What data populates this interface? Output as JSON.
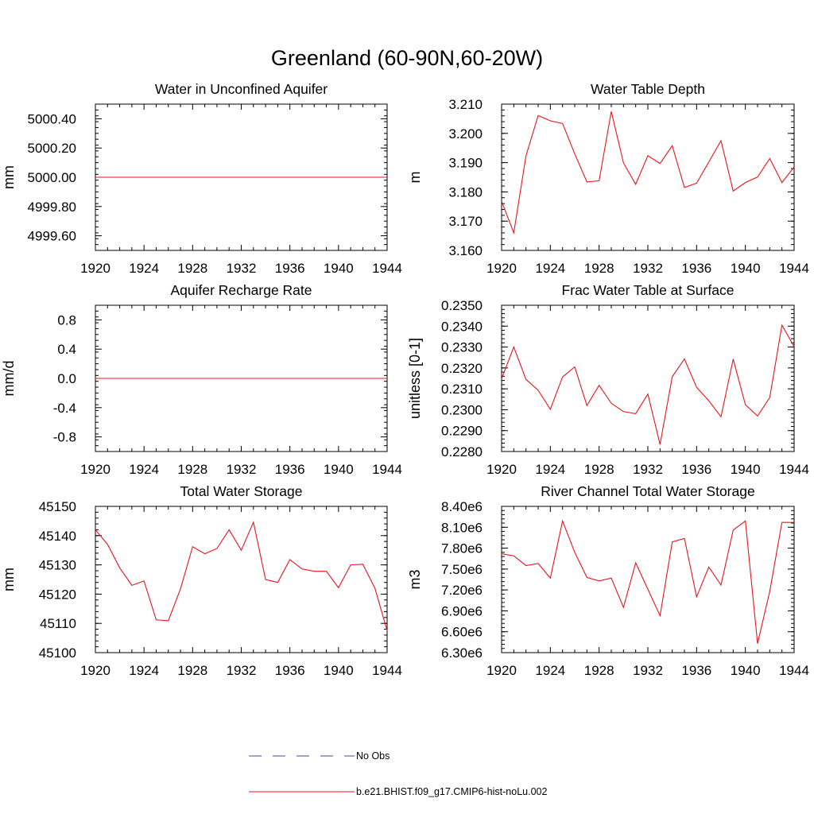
{
  "figure": {
    "title": "Greenland (60-90N,60-20W)",
    "line_color": "#e8141e",
    "obs_color": "#3d4a9c"
  },
  "legend": {
    "entries": [
      {
        "label": "No Obs",
        "style": "dashed",
        "color": "#3d4a9c"
      },
      {
        "label": "b.e21.BHIST.f09_g17.CMIP6-hist-noLu.002",
        "style": "solid",
        "color": "#e8141e"
      }
    ]
  },
  "chart_data": [
    {
      "type": "line",
      "title": "Water in Unconfined Aquifer",
      "ylabel": "mm",
      "xlim": [
        1920,
        1944
      ],
      "ylim": [
        4999.5,
        5000.5
      ],
      "xticks": [
        1920,
        1924,
        1928,
        1932,
        1936,
        1940,
        1944
      ],
      "xtick_labels": [
        "1920",
        "1924",
        "1928",
        "1932",
        "1936",
        "1940",
        "1944"
      ],
      "yticks": [
        4999.6,
        4999.8,
        5000.0,
        5000.2,
        5000.4
      ],
      "ytick_labels": [
        "4999.60",
        "4999.80",
        "5000.00",
        "5000.20",
        "5000.40"
      ],
      "x": [
        1920,
        1921,
        1922,
        1923,
        1924,
        1925,
        1926,
        1927,
        1928,
        1929,
        1930,
        1931,
        1932,
        1933,
        1934,
        1935,
        1936,
        1937,
        1938,
        1939,
        1940,
        1941,
        1942,
        1943,
        1944
      ],
      "values": [
        5000,
        5000,
        5000,
        5000,
        5000,
        5000,
        5000,
        5000,
        5000,
        5000,
        5000,
        5000,
        5000,
        5000,
        5000,
        5000,
        5000,
        5000,
        5000,
        5000,
        5000,
        5000,
        5000,
        5000,
        5000
      ]
    },
    {
      "type": "line",
      "title": "Water Table Depth",
      "ylabel": "m",
      "xlim": [
        1920,
        1944
      ],
      "ylim": [
        3.16,
        3.21
      ],
      "xticks": [
        1920,
        1924,
        1928,
        1932,
        1936,
        1940,
        1944
      ],
      "xtick_labels": [
        "1920",
        "1924",
        "1928",
        "1932",
        "1936",
        "1940",
        "1944"
      ],
      "yticks": [
        3.16,
        3.17,
        3.18,
        3.19,
        3.2,
        3.21
      ],
      "ytick_labels": [
        "3.160",
        "3.170",
        "3.180",
        "3.190",
        "3.200",
        "3.210"
      ],
      "x": [
        1920,
        1921,
        1922,
        1923,
        1924,
        1925,
        1926,
        1927,
        1928,
        1929,
        1930,
        1931,
        1932,
        1933,
        1934,
        1935,
        1936,
        1937,
        1938,
        1939,
        1940,
        1941,
        1942,
        1943,
        1944
      ],
      "values": [
        3.1768,
        3.166,
        3.1923,
        3.2061,
        3.2043,
        3.2034,
        3.193,
        3.1834,
        3.1838,
        3.2075,
        3.1899,
        3.1826,
        3.1924,
        3.1897,
        3.1958,
        3.1815,
        3.183,
        3.1902,
        3.1975,
        3.1803,
        3.1832,
        3.1851,
        3.1914,
        3.1832,
        3.1885
      ]
    },
    {
      "type": "line",
      "title": "Aquifer Recharge Rate",
      "ylabel": "mm/d",
      "xlim": [
        1920,
        1944
      ],
      "ylim": [
        -1.0,
        1.0
      ],
      "xticks": [
        1920,
        1924,
        1928,
        1932,
        1936,
        1940,
        1944
      ],
      "xtick_labels": [
        "1920",
        "1924",
        "1928",
        "1932",
        "1936",
        "1940",
        "1944"
      ],
      "yticks": [
        -0.8,
        -0.4,
        0.0,
        0.4,
        0.8
      ],
      "ytick_labels": [
        "-0.8",
        "-0.4",
        "0.0",
        "0.4",
        "0.8"
      ],
      "x": [
        1920,
        1921,
        1922,
        1923,
        1924,
        1925,
        1926,
        1927,
        1928,
        1929,
        1930,
        1931,
        1932,
        1933,
        1934,
        1935,
        1936,
        1937,
        1938,
        1939,
        1940,
        1941,
        1942,
        1943,
        1944
      ],
      "values": [
        0,
        0,
        0,
        0,
        0,
        0,
        0,
        0,
        0,
        0,
        0,
        0,
        0,
        0,
        0,
        0,
        0,
        0,
        0,
        0,
        0,
        0,
        0,
        0,
        0
      ]
    },
    {
      "type": "line",
      "title": "Frac Water Table at Surface",
      "ylabel": "unitless [0-1]",
      "xlim": [
        1920,
        1944
      ],
      "ylim": [
        0.228,
        0.235
      ],
      "xticks": [
        1920,
        1924,
        1928,
        1932,
        1936,
        1940,
        1944
      ],
      "xtick_labels": [
        "1920",
        "1924",
        "1928",
        "1932",
        "1936",
        "1940",
        "1944"
      ],
      "yticks": [
        0.228,
        0.229,
        0.23,
        0.231,
        0.232,
        0.233,
        0.234,
        0.235
      ],
      "ytick_labels": [
        "0.2280",
        "0.2290",
        "0.2300",
        "0.2310",
        "0.2320",
        "0.2330",
        "0.2340",
        "0.2350"
      ],
      "x": [
        1920,
        1921,
        1922,
        1923,
        1924,
        1925,
        1926,
        1927,
        1928,
        1929,
        1930,
        1931,
        1932,
        1933,
        1934,
        1935,
        1936,
        1937,
        1938,
        1939,
        1940,
        1941,
        1942,
        1943,
        1944
      ],
      "values": [
        0.23148,
        0.233,
        0.23145,
        0.23093,
        0.23002,
        0.23157,
        0.23205,
        0.2302,
        0.23117,
        0.23031,
        0.22991,
        0.22981,
        0.23075,
        0.22834,
        0.23158,
        0.23243,
        0.23107,
        0.23043,
        0.22966,
        0.23242,
        0.23024,
        0.2297,
        0.23058,
        0.23405,
        0.23302
      ]
    },
    {
      "type": "line",
      "title": "Total Water Storage",
      "ylabel": "mm",
      "xlim": [
        1920,
        1944
      ],
      "ylim": [
        45100,
        45150
      ],
      "xticks": [
        1920,
        1924,
        1928,
        1932,
        1936,
        1940,
        1944
      ],
      "xtick_labels": [
        "1920",
        "1924",
        "1928",
        "1932",
        "1936",
        "1940",
        "1944"
      ],
      "yticks": [
        45100,
        45110,
        45120,
        45130,
        45140,
        45150
      ],
      "ytick_labels": [
        "45100",
        "45110",
        "45120",
        "45130",
        "45140",
        "45150"
      ],
      "x": [
        1920,
        1921,
        1922,
        1923,
        1924,
        1925,
        1926,
        1927,
        1928,
        1929,
        1930,
        1931,
        1932,
        1933,
        1934,
        1935,
        1936,
        1937,
        1938,
        1939,
        1940,
        1941,
        1942,
        1943,
        1944
      ],
      "values": [
        45142,
        45137,
        45129,
        45123,
        45124.5,
        45111.2,
        45110.9,
        45121.8,
        45136.2,
        45133.8,
        45135.6,
        45142,
        45135,
        45144.6,
        45125,
        45124,
        45131.8,
        45128.6,
        45127.8,
        45127.8,
        45122.2,
        45130,
        45130.2,
        45122,
        45107.5
      ]
    },
    {
      "type": "line",
      "title": "River Channel Total Water Storage",
      "ylabel": "m3",
      "xlim": [
        1920,
        1944
      ],
      "ylim": [
        6300000,
        8400000
      ],
      "xticks": [
        1920,
        1924,
        1928,
        1932,
        1936,
        1940,
        1944
      ],
      "xtick_labels": [
        "1920",
        "1924",
        "1928",
        "1932",
        "1936",
        "1940",
        "1944"
      ],
      "yticks": [
        6300000,
        6600000,
        6900000,
        7200000,
        7500000,
        7800000,
        8100000,
        8400000
      ],
      "ytick_labels": [
        "6.30e6",
        "6.60e6",
        "6.90e6",
        "7.20e6",
        "7.50e6",
        "7.80e6",
        "8.10e6",
        "8.40e6"
      ],
      "x": [
        1920,
        1921,
        1922,
        1923,
        1924,
        1925,
        1926,
        1927,
        1928,
        1929,
        1930,
        1931,
        1932,
        1933,
        1934,
        1935,
        1936,
        1937,
        1938,
        1939,
        1940,
        1941,
        1942,
        1943,
        1944
      ],
      "values": [
        7720000,
        7690000,
        7550000,
        7580000,
        7370000,
        8190000,
        7740000,
        7380000,
        7330000,
        7370000,
        6950000,
        7590000,
        7210000,
        6830000,
        7890000,
        7940000,
        7100000,
        7530000,
        7270000,
        8060000,
        8190000,
        6430000,
        7180000,
        8170000,
        8170000
      ]
    }
  ]
}
